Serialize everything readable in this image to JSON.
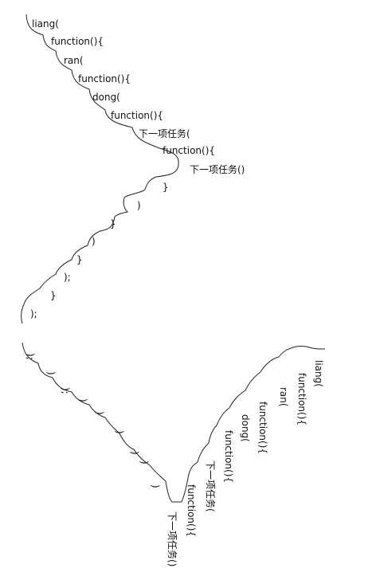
{
  "top_staircase": {
    "lines": [
      "liang(",
      "function(){",
      "ran(",
      "function(){",
      "dong(",
      "function(){",
      "下一项任务(",
      "function(){",
      "下一项任务()",
      "}",
      ")",
      "}",
      ")",
      "}",
      ");",
      "}",
      ");"
    ]
  },
  "bottom_v": {
    "left_lines": [
      ");",
      ")",
      ");",
      ")",
      ")",
      ")",
      ")",
      ")",
      ")"
    ],
    "right_lines": [
      "liang(",
      "function(){",
      "ran(",
      "function(){",
      "dong(",
      "function(){",
      "下一项任务(",
      "function(){",
      "下一项任务()"
    ]
  }
}
